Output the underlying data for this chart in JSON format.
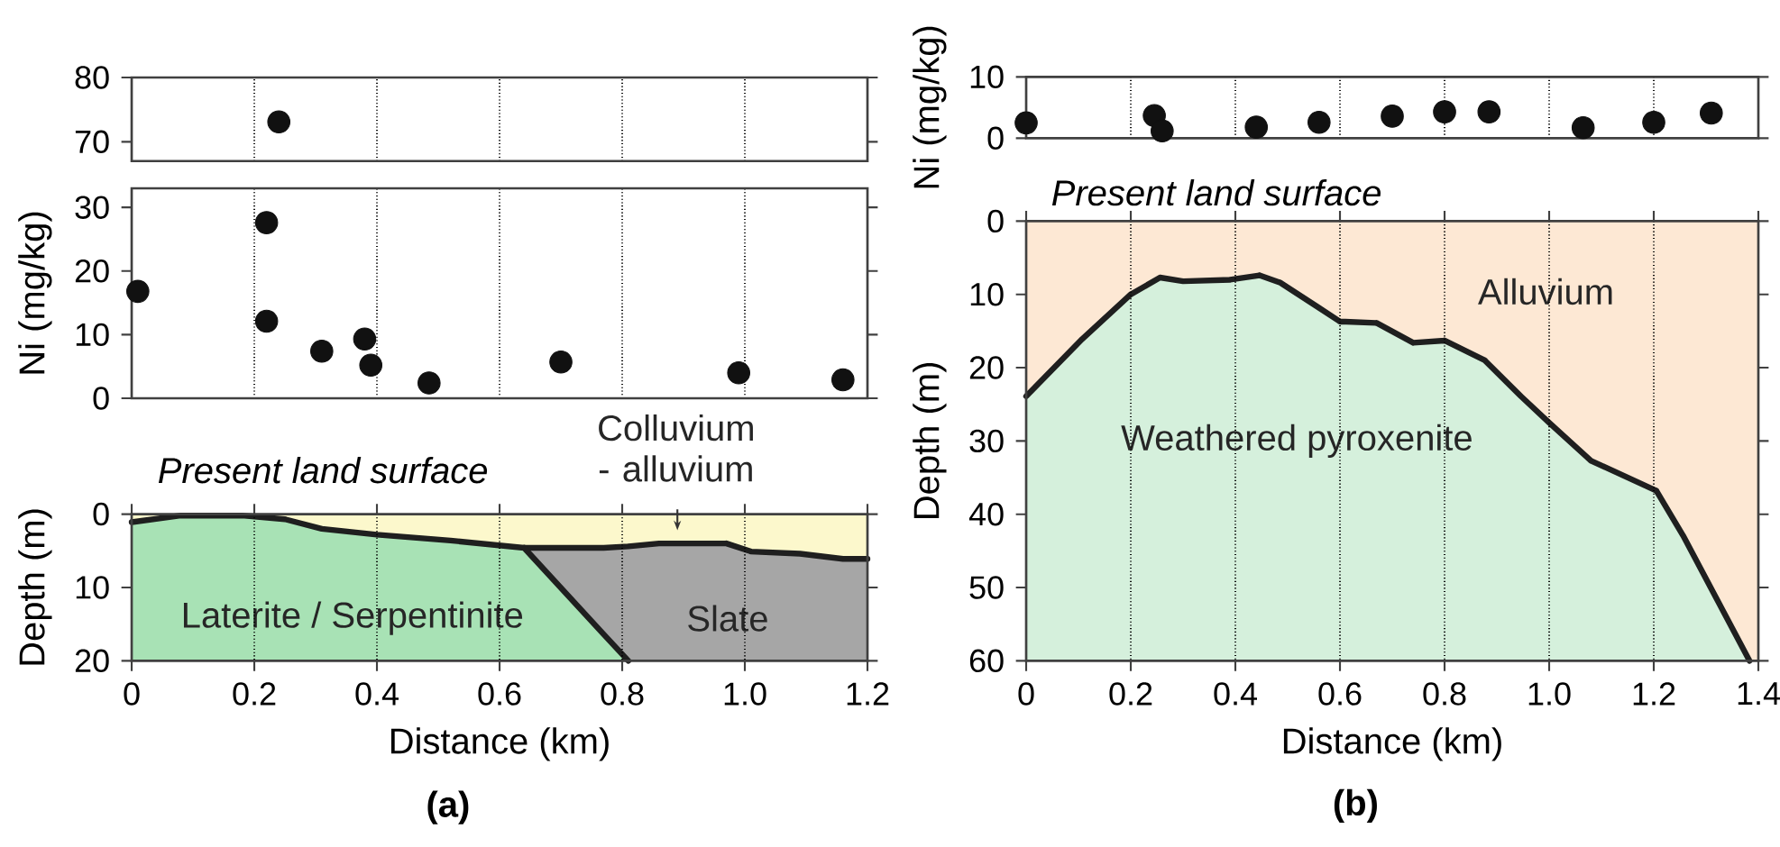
{
  "chart_data": [
    {
      "type": "scatter",
      "xlim": [
        0,
        1.2
      ],
      "xticks": [
        0,
        0.2,
        0.4,
        0.6,
        0.8,
        1,
        1.2
      ],
      "ylim": [
        67,
        80
      ],
      "yticks": [
        70,
        80
      ],
      "tick_labels": "y",
      "grid": "x",
      "marker": "circle",
      "color": "#111111",
      "x": [
        0.24
      ],
      "values": [
        73.1
      ]
    },
    {
      "type": "scatter",
      "ylabel": "Ni (mg/kg)",
      "xlim": [
        0,
        1.2
      ],
      "xticks": [
        0,
        0.2,
        0.4,
        0.6,
        0.8,
        1,
        1.2
      ],
      "ylim": [
        0,
        33
      ],
      "yticks": [
        0,
        10,
        20,
        30
      ],
      "tick_labels": "y",
      "grid": "x",
      "marker": "circle",
      "color": "#111111",
      "x": [
        0.01,
        0.22,
        0.22,
        0.31,
        0.38,
        0.39,
        0.485,
        0.7,
        0.99,
        1.16
      ],
      "values": [
        16.8,
        27.6,
        12.1,
        7.4,
        9.3,
        5.2,
        2.4,
        5.7,
        4.0,
        2.9
      ]
    },
    {
      "type": "area",
      "stacked": true,
      "xlabel": "Distance (km)",
      "ylabel": "Depth (m)",
      "xlim": [
        0,
        1.2
      ],
      "xticks": [
        0,
        0.2,
        0.4,
        0.6,
        0.8,
        {
          "value": 1,
          "label": "1.0"
        },
        1.2
      ],
      "ylim": [
        20,
        0
      ],
      "yticks": [
        0,
        10,
        20
      ],
      "grid": "x",
      "annotations": [
        "Present land surface",
        "(a)"
      ],
      "series": [
        {
          "name": "Colluvium - alluvium",
          "color": "#fcf8cc",
          "x": [
            0,
            0.08,
            0.18,
            0.25,
            0.31,
            0.4,
            0.52,
            0.64,
            0.77,
            0.81,
            0.86,
            0.97,
            1.01,
            1.09,
            1.16,
            1.2
          ],
          "values": [
            1.1,
            0.2,
            0.2,
            0.7,
            2.0,
            2.8,
            3.6,
            4.6,
            4.6,
            4.4,
            4.0,
            4.0,
            5.1,
            5.4,
            6.1,
            6.1
          ]
        },
        {
          "name": "Slate",
          "color": "#a6a6a6",
          "x": [
            0,
            0.08,
            0.18,
            0.25,
            0.31,
            0.4,
            0.52,
            0.64,
            0.77,
            0.81,
            0.86,
            0.97,
            1.01,
            1.09,
            1.16,
            1.2
          ],
          "values": [
            0,
            null,
            null,
            null,
            null,
            null,
            null,
            0,
            11.8,
            15.6,
            16.0,
            16.0,
            14.9,
            14.6,
            13.9,
            13.9
          ]
        },
        {
          "name": "Laterite / Serpentinite",
          "color": "#a8e2b5",
          "x": [
            0,
            0.08,
            0.18,
            0.25,
            0.31,
            0.4,
            0.52,
            0.64,
            0.77,
            0.81,
            0.86,
            0.97,
            1.01,
            1.09,
            1.16,
            1.2
          ],
          "values": [
            18.9,
            19.8,
            19.8,
            19.3,
            18.0,
            17.2,
            16.4,
            15.4,
            3.6,
            0,
            null,
            null,
            null,
            null,
            null,
            0
          ]
        }
      ]
    },
    {
      "type": "scatter",
      "ylabel": "Ni (mg/kg)",
      "xlim": [
        0,
        1.4
      ],
      "xticks": [
        0,
        0.2,
        0.4,
        0.6,
        0.8,
        1,
        1.2,
        1.4
      ],
      "ylim": [
        0,
        10
      ],
      "yticks": [
        0,
        10
      ],
      "tick_labels": "y",
      "grid": "x",
      "marker": "circle",
      "color": "#111111",
      "x": [
        0,
        0.245,
        0.26,
        0.44,
        0.56,
        0.7,
        0.8,
        0.885,
        1.065,
        1.2,
        1.31
      ],
      "values": [
        2.5,
        3.7,
        1.2,
        1.8,
        2.6,
        3.6,
        4.3,
        4.3,
        1.7,
        2.6,
        4.1
      ]
    },
    {
      "type": "area",
      "stacked": true,
      "xlabel": "Distance (km)",
      "ylabel": "Depth (m)",
      "xlim": [
        0,
        1.4
      ],
      "xticks": [
        0,
        0.2,
        0.4,
        0.6,
        0.8,
        {
          "value": 1,
          "label": "1.0"
        },
        1.2,
        1.4
      ],
      "ylim": [
        60,
        0
      ],
      "yticks": [
        0,
        10,
        20,
        30,
        40,
        50,
        60
      ],
      "grid": "x",
      "annotations": [
        "Present land surface",
        "(b)"
      ],
      "series": [
        {
          "name": "Alluvium",
          "color": "#fde8d4",
          "x": [
            0,
            0.107,
            0.2,
            0.256,
            0.3,
            0.39,
            0.446,
            0.486,
            0.555,
            0.6,
            0.67,
            0.74,
            0.8,
            0.877,
            0.946,
            1.0,
            1.08,
            1.205,
            1.256,
            1.383,
            1.4
          ],
          "values": [
            23.9,
            16.1,
            10,
            7.7,
            8.2,
            8,
            7.4,
            8.4,
            11.6,
            13.7,
            13.9,
            16.6,
            16.3,
            19.0,
            23.9,
            27.5,
            32.7,
            36.8,
            42.9,
            60,
            60
          ]
        },
        {
          "name": "Weathered pyroxenite",
          "color": "#d5f0dc",
          "x": [
            0,
            0.107,
            0.2,
            0.256,
            0.3,
            0.39,
            0.446,
            0.486,
            0.555,
            0.6,
            0.67,
            0.74,
            0.8,
            0.877,
            0.946,
            1.0,
            1.08,
            1.205,
            1.256,
            1.383,
            1.4
          ],
          "values": [
            36.1,
            43.9,
            50,
            52.3,
            51.8,
            52,
            52.6,
            51.6,
            48.4,
            46.3,
            46.1,
            43.4,
            43.7,
            41.0,
            36.1,
            32.5,
            27.3,
            23.2,
            17.1,
            0,
            0
          ]
        }
      ]
    }
  ]
}
